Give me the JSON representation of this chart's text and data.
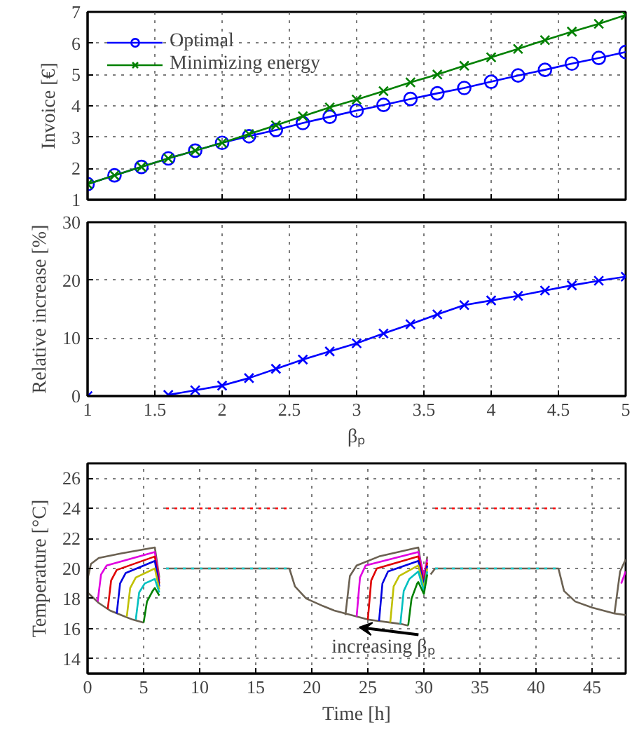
{
  "chart_data": [
    {
      "type": "line",
      "ylabel": "Invoice [€]",
      "xlim": [
        1,
        5
      ],
      "xticks": [
        1,
        1.5,
        2,
        2.5,
        3,
        3.5,
        4,
        4.5,
        5
      ],
      "ylim": [
        1,
        7
      ],
      "yticks": [
        1,
        2,
        3,
        4,
        5,
        6,
        7
      ],
      "tick_labels": "y",
      "grid": true,
      "legend": "top left",
      "x": [
        1,
        1.2,
        1.4,
        1.6,
        1.8,
        2,
        2.2,
        2.4,
        2.6,
        2.8,
        3,
        3.2,
        3.4,
        3.6,
        3.8,
        4,
        4.2,
        4.4,
        4.6,
        4.8,
        5
      ],
      "series": [
        {
          "name": "Optimal",
          "color": "#0000ff",
          "marker": "circle",
          "values": [
            1.5,
            1.78,
            2.05,
            2.32,
            2.57,
            2.82,
            3.03,
            3.23,
            3.45,
            3.65,
            3.85,
            4.03,
            4.22,
            4.4,
            4.57,
            4.77,
            4.97,
            5.15,
            5.35,
            5.53,
            5.72
          ]
        },
        {
          "name": "Minimizing energy",
          "color": "#008000",
          "marker": "cross",
          "values": [
            1.5,
            1.78,
            2.05,
            2.32,
            2.57,
            2.82,
            3.1,
            3.38,
            3.67,
            3.95,
            4.2,
            4.47,
            4.75,
            5.0,
            5.28,
            5.55,
            5.82,
            6.1,
            6.37,
            6.62,
            6.9
          ]
        }
      ]
    },
    {
      "type": "line",
      "xlabel": "βₚ",
      "ylabel": "Relative increase [%]",
      "xlim": [
        1,
        5
      ],
      "xticks": [
        1,
        1.5,
        2,
        2.5,
        3,
        3.5,
        4,
        4.5,
        5
      ],
      "ylim": [
        0,
        30
      ],
      "yticks": [
        0,
        10,
        20,
        30
      ],
      "grid": true,
      "marker": "cross",
      "x": [
        1,
        1.2,
        1.4,
        1.6,
        1.8,
        2,
        2.2,
        2.4,
        2.6,
        2.8,
        3,
        3.2,
        3.4,
        3.6,
        3.8,
        4,
        4.2,
        4.4,
        4.6,
        4.8,
        5
      ],
      "series": [
        {
          "color": "#0000ff",
          "values": [
            0,
            null,
            null,
            0.2,
            1,
            1.8,
            3.1,
            4.7,
            6.3,
            7.7,
            9.1,
            10.8,
            12.4,
            14.1,
            15.7,
            16.5,
            17.3,
            18.2,
            19.1,
            19.9,
            20.6
          ]
        }
      ]
    },
    {
      "type": "line",
      "xlabel": "Time [h]",
      "ylabel": "Temperature [°C]",
      "xlim": [
        0,
        48
      ],
      "xticks": [
        0,
        5,
        10,
        15,
        20,
        25,
        30,
        35,
        40,
        45
      ],
      "ylim": [
        13,
        27
      ],
      "yticks": [
        14,
        16,
        18,
        20,
        22,
        24,
        26
      ],
      "grid": true,
      "marker": "none",
      "annotations": [
        "increasing βₚ"
      ],
      "series": [
        {
          "color": "#6b6152",
          "x": [
            0,
            1,
            2,
            3,
            4,
            5,
            null,
            7,
            18,
            18.5,
            19.5,
            21,
            22,
            24,
            25,
            26,
            27,
            28,
            28.6,
            null,
            30.6,
            31,
            42,
            42.5,
            43.5,
            45,
            47,
            48
          ],
          "values": [
            18.4,
            17.7,
            17.2,
            16.9,
            16.6,
            16.4,
            null,
            20,
            20,
            18.8,
            18.0,
            17.5,
            17.2,
            16.8,
            16.6,
            16.5,
            16.4,
            16.3,
            16.2,
            null,
            19.6,
            20,
            20,
            18.5,
            17.8,
            17.4,
            17.0,
            16.9
          ]
        },
        {
          "color": "#6b6152",
          "x": [
            0,
            0.3,
            1,
            3,
            6,
            6.4,
            null,
            23,
            23.4,
            24,
            26,
            29.5,
            30,
            30.3,
            null,
            47,
            47.5,
            48
          ],
          "values": [
            19.3,
            20.3,
            20.7,
            21.0,
            21.4,
            19.4,
            null,
            16.9,
            19.5,
            20.2,
            20.8,
            21.4,
            19.2,
            20.8,
            null,
            17.0,
            19.8,
            20.6
          ]
        },
        {
          "color": "#e000e0",
          "x": [
            0.9,
            1.2,
            1.7,
            6,
            6.4,
            null,
            24,
            24.3,
            24.8,
            29.5,
            30,
            30.3,
            null,
            47.6,
            48
          ],
          "values": [
            17.8,
            19.6,
            20.2,
            21.1,
            19.2,
            null,
            16.8,
            19.4,
            20.2,
            21.1,
            19.5,
            20.6,
            null,
            19.0,
            19.8
          ]
        },
        {
          "color": "#e00000",
          "x": [
            1.8,
            2.1,
            2.6,
            6,
            6.4
          ],
          "values": [
            17.3,
            19.2,
            19.9,
            20.8,
            19.0
          ]
        },
        {
          "color": "#e00000",
          "x": [
            25,
            25.3,
            25.8,
            29.5,
            30,
            30.3
          ],
          "values": [
            16.6,
            19.2,
            20.0,
            20.8,
            19.1,
            20.4
          ]
        },
        {
          "color": "#0000e0",
          "x": [
            2.6,
            2.9,
            3.4,
            6,
            6.4,
            null,
            26,
            26.3,
            26.8,
            29.5,
            30,
            30.3
          ],
          "values": [
            17.0,
            19.0,
            19.7,
            20.5,
            18.8,
            null,
            16.5,
            19.0,
            19.8,
            20.5,
            18.9,
            20.2
          ]
        },
        {
          "color": "#c0c000",
          "x": [
            3.5,
            3.8,
            4.3,
            6,
            6.4,
            null,
            27,
            27.3,
            27.8,
            29.5,
            30,
            30.3
          ],
          "values": [
            16.8,
            18.7,
            19.4,
            20.0,
            18.6,
            null,
            16.4,
            18.8,
            19.5,
            20.2,
            18.7,
            20.0
          ]
        },
        {
          "color": "#00c0c0",
          "x": [
            4.3,
            4.6,
            5.1,
            6,
            6.4,
            null,
            27.9,
            28.2,
            28.7,
            29.5,
            30,
            30.3
          ],
          "values": [
            16.6,
            18.4,
            19.0,
            19.3,
            18.4,
            null,
            16.3,
            18.5,
            19.3,
            19.8,
            18.5,
            19.8
          ]
        },
        {
          "color": "#008000",
          "x": [
            5,
            5.3,
            5.8,
            6,
            6.4,
            null,
            28.6,
            28.9,
            29.4,
            29.5,
            30,
            30.3
          ],
          "values": [
            16.4,
            17.8,
            18.5,
            18.7,
            18.2,
            null,
            16.2,
            18.0,
            19.0,
            19.1,
            18.3,
            19.6
          ]
        },
        {
          "color": "#00d0d0",
          "line_style": "dotted",
          "x": [
            7,
            18,
            null,
            31,
            42
          ],
          "values": [
            20,
            20,
            null,
            20,
            20
          ]
        },
        {
          "color": "#ff0000",
          "line_style": "dotted",
          "x": [
            7,
            18,
            null,
            31,
            42
          ],
          "values": [
            24,
            24,
            null,
            24,
            24
          ]
        }
      ]
    }
  ]
}
